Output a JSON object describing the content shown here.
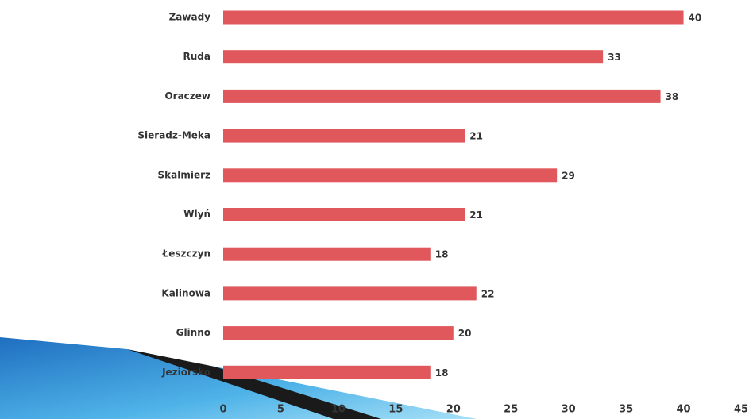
{
  "chart_data": {
    "type": "bar",
    "orientation": "horizontal",
    "categories": [
      "Zawady",
      "Ruda",
      "Oraczew",
      "Sieradz-Męka",
      "Skalmierz",
      "Wlyń",
      "Łeszczyn",
      "Kalinowa",
      "Glinno",
      "Jeziorsko"
    ],
    "values": [
      40,
      33,
      38,
      21,
      29,
      21,
      18,
      22,
      20,
      18
    ],
    "color": "#e0575c",
    "xlim": [
      0,
      45
    ],
    "xticks": [
      0,
      5,
      10,
      15,
      20,
      25,
      30,
      35,
      40,
      45
    ],
    "grid": false
  }
}
